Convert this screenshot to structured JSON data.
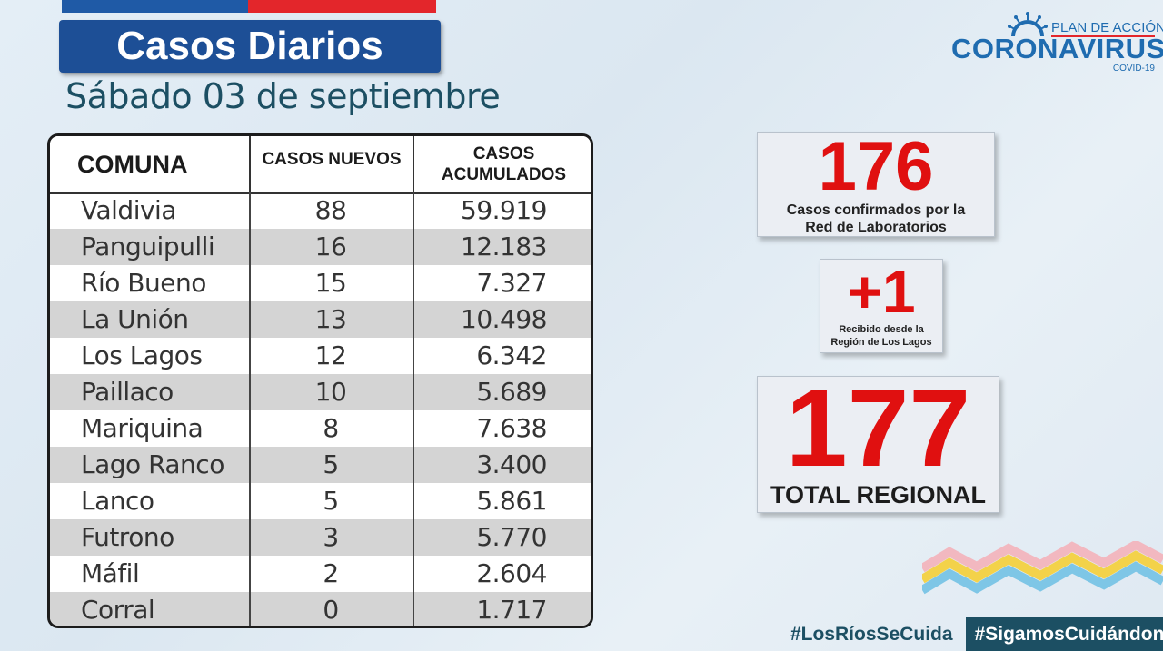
{
  "header": {
    "title": "Casos Diarios",
    "date": "Sábado 03 de septiembre"
  },
  "logo": {
    "plan": "PLAN DE ACCIÓN",
    "main": "CORONAVIRUS",
    "sub": "COVID-19"
  },
  "table": {
    "headers": {
      "comuna": "COMUNA",
      "nuevos": "CASOS NUEVOS",
      "acumulados_l1": "CASOS",
      "acumulados_l2": "ACUMULADOS"
    },
    "rows": [
      {
        "comuna": "Valdivia",
        "nuevos": "88",
        "acumulados": "59.919"
      },
      {
        "comuna": "Panguipulli",
        "nuevos": "16",
        "acumulados": "12.183"
      },
      {
        "comuna": "Río Bueno",
        "nuevos": "15",
        "acumulados": "7.327"
      },
      {
        "comuna": "La Unión",
        "nuevos": "13",
        "acumulados": "10.498"
      },
      {
        "comuna": "Los Lagos",
        "nuevos": "12",
        "acumulados": "6.342"
      },
      {
        "comuna": "Paillaco",
        "nuevos": "10",
        "acumulados": "5.689"
      },
      {
        "comuna": "Mariquina",
        "nuevos": "8",
        "acumulados": "7.638"
      },
      {
        "comuna": "Lago Ranco",
        "nuevos": "5",
        "acumulados": "3.400"
      },
      {
        "comuna": "Lanco",
        "nuevos": "5",
        "acumulados": "5.861"
      },
      {
        "comuna": "Futrono",
        "nuevos": "3",
        "acumulados": "5.770"
      },
      {
        "comuna": "Máfil",
        "nuevos": "2",
        "acumulados": "2.604"
      },
      {
        "comuna": "Corral",
        "nuevos": "0",
        "acumulados": "1.717"
      }
    ]
  },
  "cards": {
    "lab": {
      "value": "176",
      "line1": "Casos confirmados  por la",
      "line2": "Red de Laboratorios"
    },
    "external": {
      "value": "+1",
      "line1": "Recibido desde la",
      "line2": "Región de Los Lagos"
    },
    "total": {
      "value": "177",
      "label": "TOTAL REGIONAL"
    }
  },
  "hashtags": {
    "tag1": "#LosRíosSeCuida",
    "tag2": "#SigamosCuidándonos"
  },
  "colors": {
    "accent_blue": "#1d4f96",
    "accent_red": "#e01010",
    "dark_teal": "#1c4f63"
  }
}
